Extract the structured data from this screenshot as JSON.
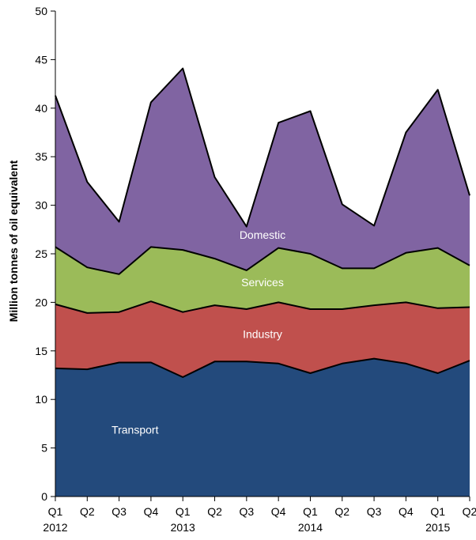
{
  "chart_data": {
    "type": "area",
    "stacked": true,
    "title": "",
    "ylabel": "Million tonnes of oil equivalent",
    "xlabel": "",
    "ylim": [
      0,
      50
    ],
    "yticks": [
      "0",
      "5",
      "10",
      "15",
      "20",
      "25",
      "30",
      "35",
      "40",
      "45",
      "50"
    ],
    "quarters": [
      "Q1",
      "Q2",
      "Q3",
      "Q4",
      "Q1",
      "Q2",
      "Q3",
      "Q4",
      "Q1",
      "Q2",
      "Q3",
      "Q4",
      "Q1",
      "Q2"
    ],
    "years": [
      {
        "label": "2012",
        "index": 0
      },
      {
        "label": "2013",
        "index": 4
      },
      {
        "label": "2014",
        "index": 8
      },
      {
        "label": "2015",
        "index": 12
      }
    ],
    "grid": false,
    "legend": "inline labels",
    "series": [
      {
        "name": "Transport",
        "color": "#234a7c",
        "values": [
          13.2,
          13.1,
          13.8,
          13.8,
          12.3,
          13.9,
          13.9,
          13.7,
          12.7,
          13.7,
          14.2,
          13.7,
          12.7,
          14.0
        ]
      },
      {
        "name": "Industry",
        "color": "#c0504d",
        "values": [
          6.6,
          5.8,
          5.2,
          6.3,
          6.7,
          5.8,
          5.4,
          6.3,
          6.6,
          5.6,
          5.5,
          6.3,
          6.7,
          5.5
        ]
      },
      {
        "name": "Services",
        "color": "#9bbb59",
        "values": [
          5.9,
          4.7,
          3.9,
          5.6,
          6.4,
          4.8,
          4.0,
          5.6,
          5.7,
          4.2,
          3.8,
          5.1,
          6.2,
          4.3
        ]
      },
      {
        "name": "Domestic",
        "color": "#8064a2",
        "values": [
          15.6,
          8.8,
          5.4,
          14.9,
          18.7,
          8.4,
          4.5,
          12.9,
          14.7,
          6.6,
          4.4,
          12.4,
          16.3,
          7.2
        ]
      }
    ],
    "series_label_positions": {
      "Transport": 2.5,
      "Industry": 6.5,
      "Services": 6.5,
      "Domestic": 6.5
    }
  }
}
